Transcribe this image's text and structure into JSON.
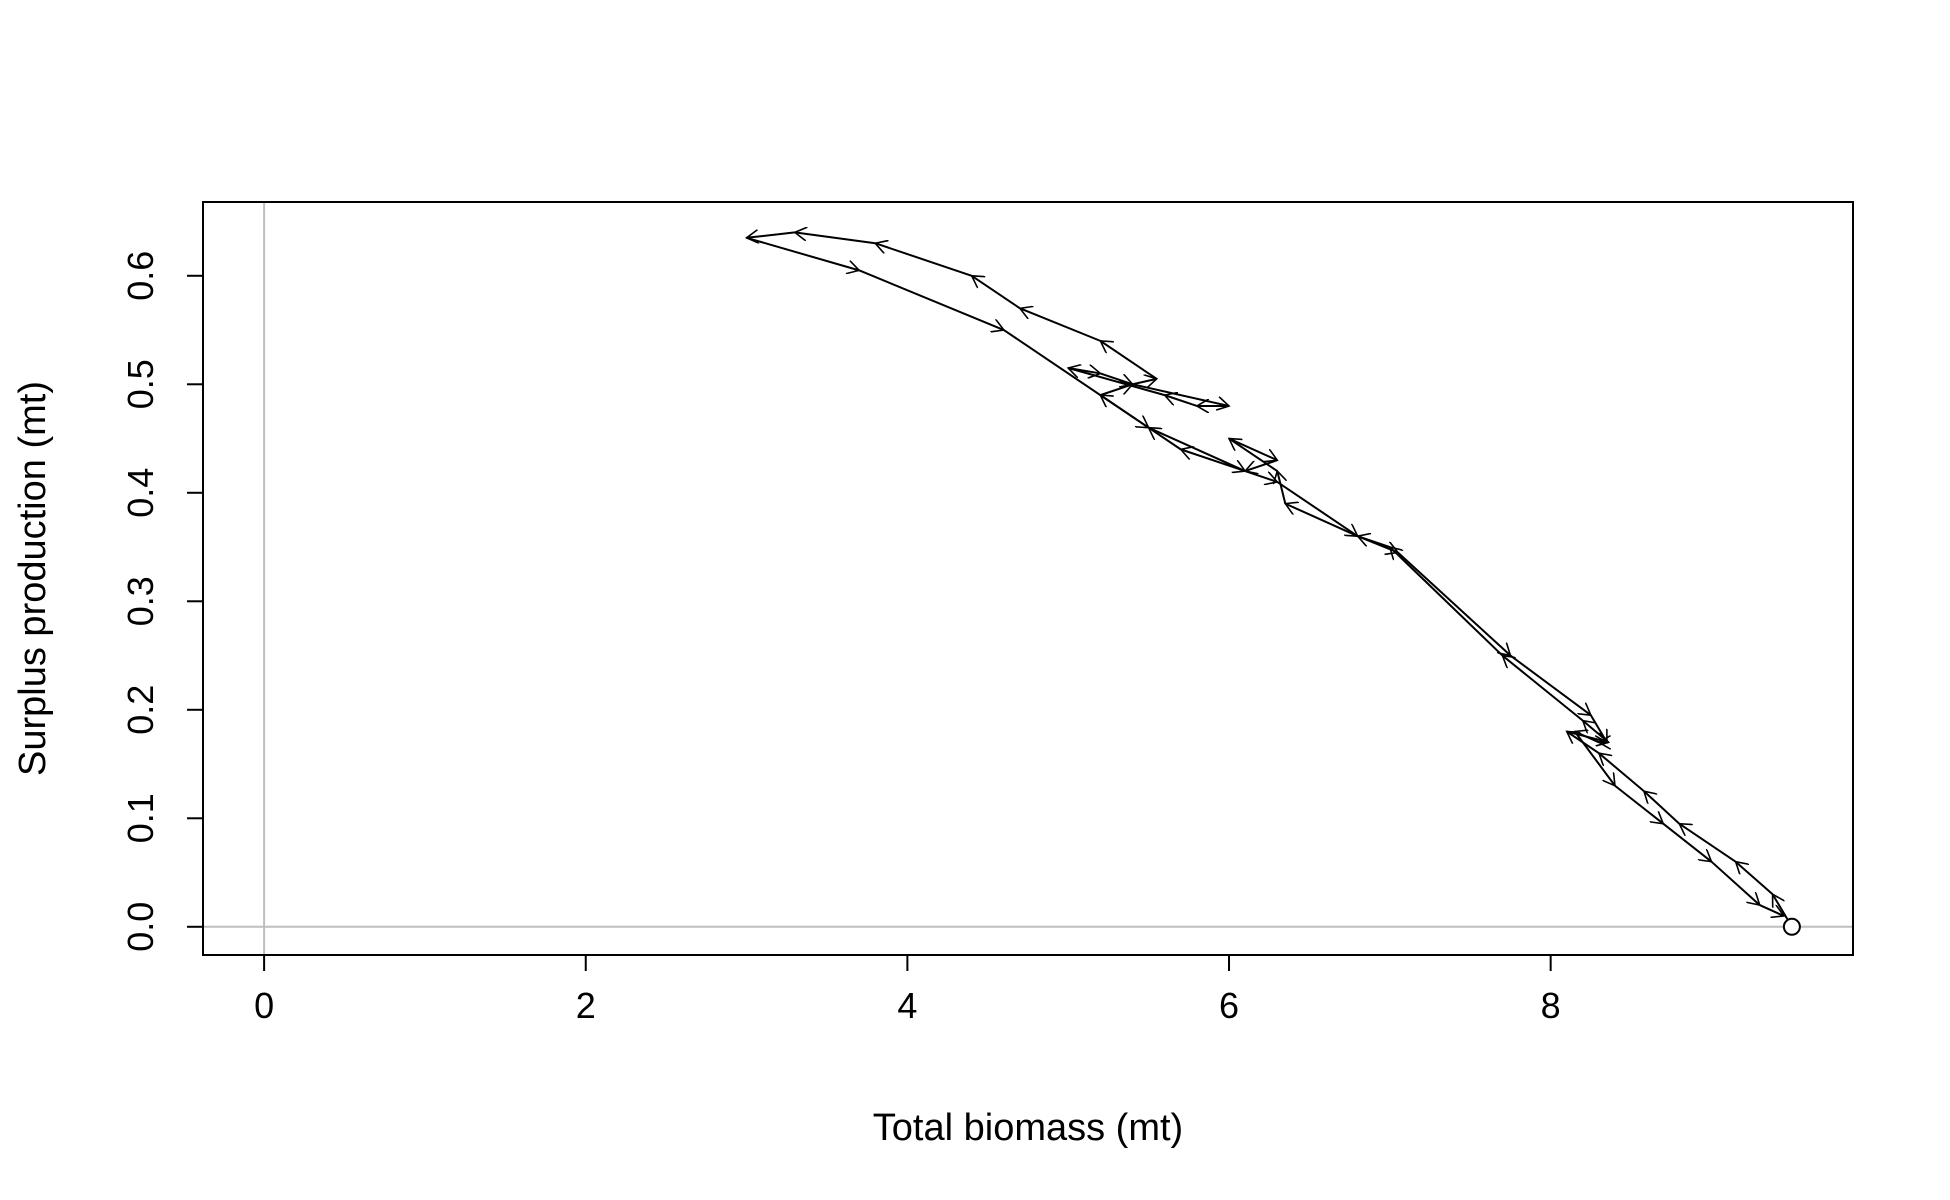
{
  "chart_data": {
    "type": "line",
    "title": "",
    "xlabel": "Total biomass (mt)",
    "ylabel": "Surplus production (mt)",
    "xlim": [
      -0.38,
      9.88
    ],
    "ylim": [
      -0.026,
      0.668
    ],
    "x_ticks": [
      0,
      2,
      4,
      6,
      8
    ],
    "x_tick_labels": [
      "0",
      "2",
      "4",
      "6",
      "8"
    ],
    "y_ticks": [
      0.0,
      0.1,
      0.2,
      0.3,
      0.4,
      0.5,
      0.6
    ],
    "y_tick_labels": [
      "0.0",
      "0.1",
      "0.2",
      "0.3",
      "0.4",
      "0.5",
      "0.6"
    ],
    "reference_lines": {
      "x": 0,
      "y": 0,
      "color": "#bebebe"
    },
    "line_color": "#000000",
    "start_marker": "open-circle",
    "series": [
      {
        "x": [
          9.5,
          9.38,
          9.15,
          8.8,
          8.58,
          8.3,
          8.1,
          8.36,
          8.2,
          7.7,
          7.0,
          6.8,
          6.35,
          6.3,
          6.0,
          6.3,
          6.1,
          5.7,
          5.5,
          5.2,
          5.4,
          6.0,
          5.8,
          5.6,
          5.0,
          5.2,
          5.4,
          5.55,
          5.2,
          4.7,
          4.4,
          3.8,
          3.3,
          3.0,
          3.7,
          4.6,
          5.5,
          6.1,
          6.3,
          6.8,
          7.05,
          7.75,
          8.25,
          8.35,
          8.3,
          8.15,
          8.4,
          8.7,
          9.0,
          9.3,
          9.45
        ],
        "y": [
          0.0,
          0.03,
          0.06,
          0.095,
          0.125,
          0.16,
          0.18,
          0.17,
          0.19,
          0.25,
          0.35,
          0.36,
          0.39,
          0.42,
          0.45,
          0.43,
          0.42,
          0.44,
          0.46,
          0.49,
          0.5,
          0.48,
          0.48,
          0.49,
          0.515,
          0.51,
          0.5,
          0.505,
          0.54,
          0.57,
          0.6,
          0.63,
          0.64,
          0.635,
          0.605,
          0.55,
          0.46,
          0.42,
          0.41,
          0.36,
          0.345,
          0.25,
          0.195,
          0.17,
          0.17,
          0.18,
          0.13,
          0.095,
          0.06,
          0.02,
          0.01
        ]
      }
    ]
  }
}
